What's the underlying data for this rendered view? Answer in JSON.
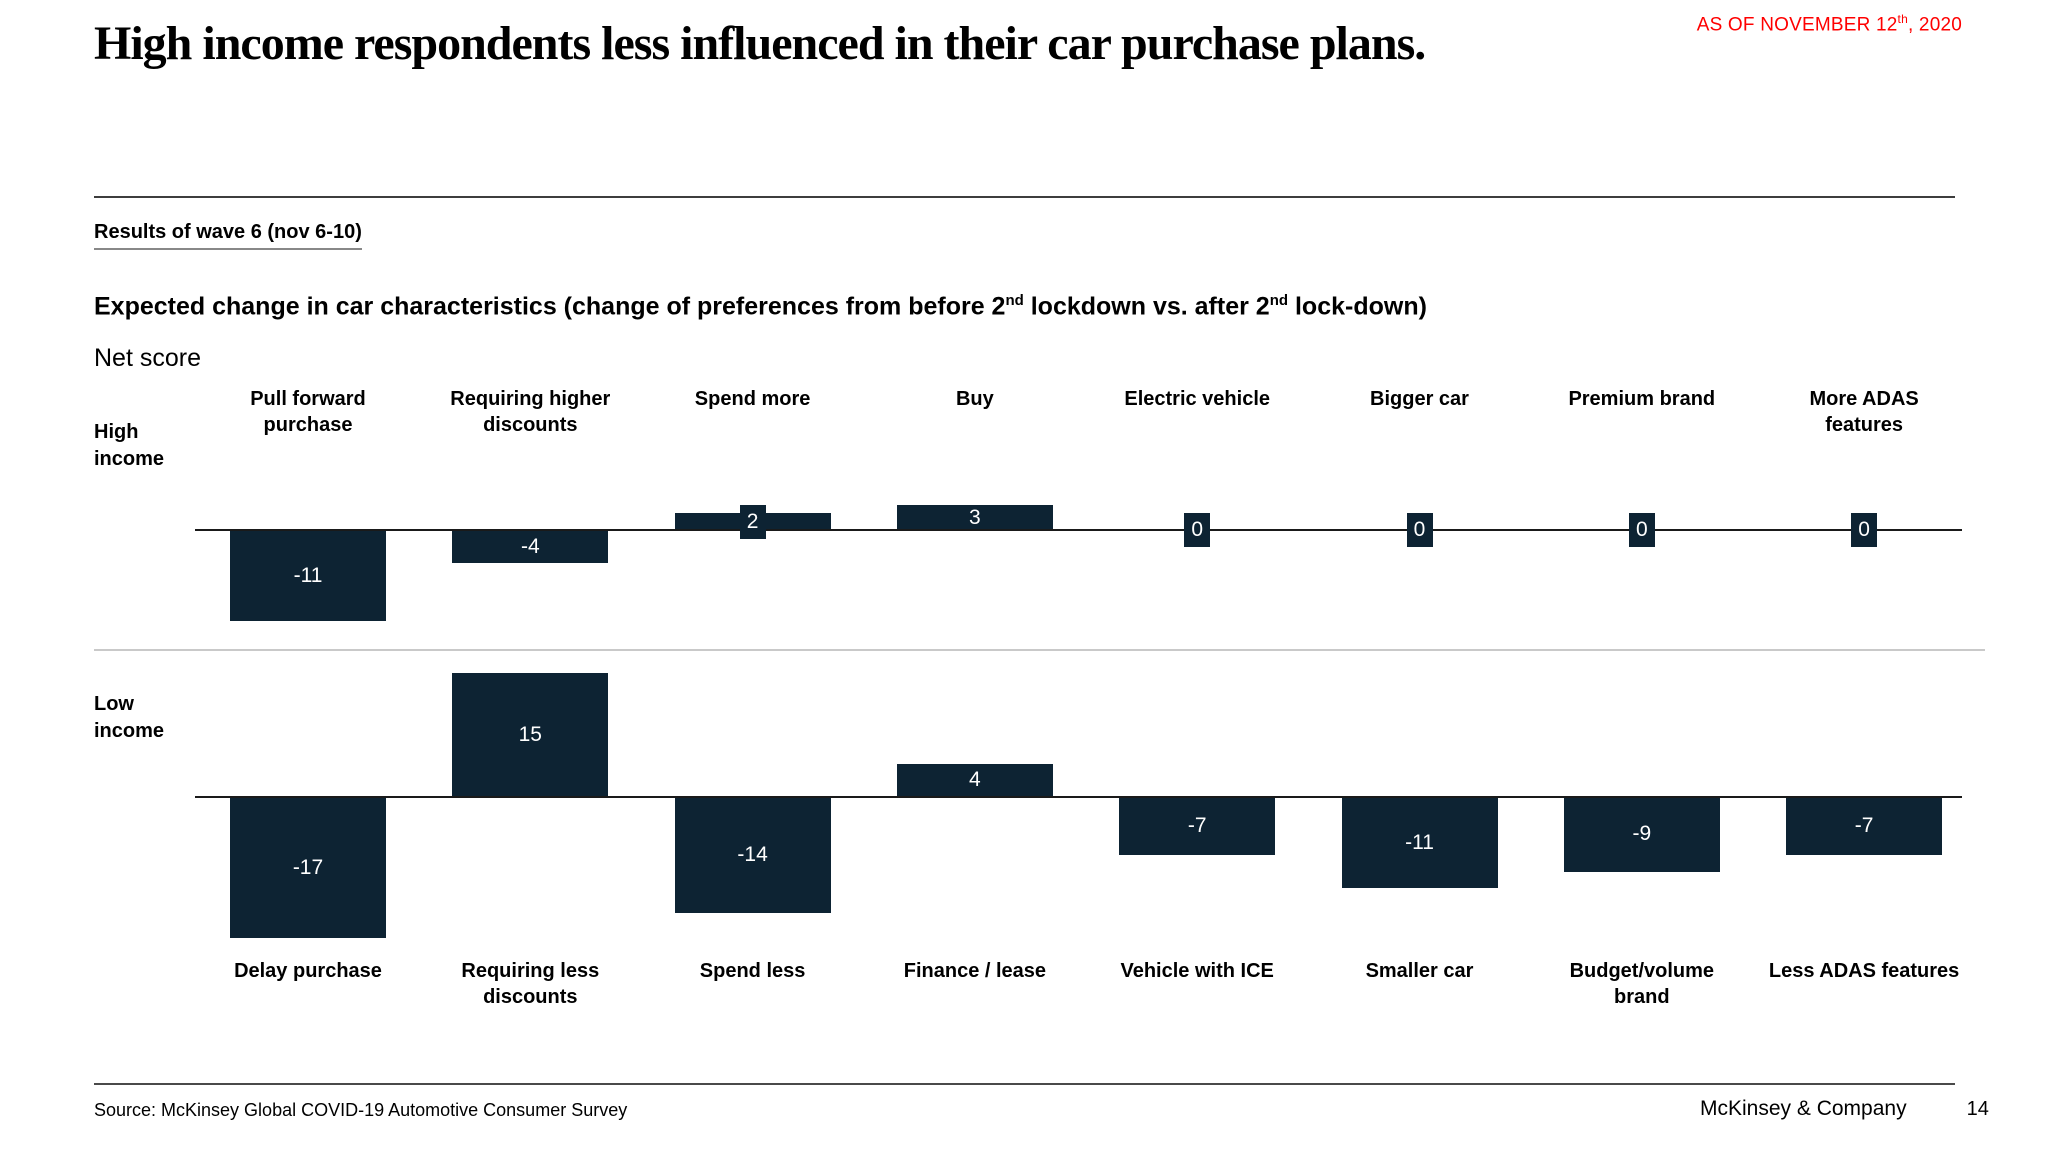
{
  "slide": {
    "as_of": {
      "prefix": "AS OF NOVEMBER 12",
      "sup": "th",
      "suffix": ", 2020"
    },
    "title": "High income respondents less influenced in their car purchase plans.",
    "wave_note": "Results of wave 6 (nov 6-10)",
    "subtitle": {
      "p1": "Expected change in car characteristics (change of preferences from before 2",
      "s1": "nd",
      "p2": " lockdown vs. after 2",
      "s2": "nd",
      "p3": " lock-down)"
    }
  },
  "chart_data": {
    "type": "bar",
    "title": "Expected change in car characteristics (change of preferences from before 2nd lockdown vs. after 2nd lock-down)",
    "ylabel": "Net score",
    "top_categories": [
      "Pull forward\npurchase",
      "Requiring higher\ndiscounts",
      "Spend more",
      "Buy",
      "Electric vehicle",
      "Bigger car",
      "Premium brand",
      "More ADAS\nfeatures"
    ],
    "bottom_categories": [
      "Delay purchase",
      "Requiring less\ndiscounts",
      "Spend less",
      "Finance / lease",
      "Vehicle with ICE",
      "Smaller car",
      "Budget/volume\nbrand",
      "Less ADAS features"
    ],
    "series": [
      {
        "name": "High income",
        "values": [
          -11,
          -4,
          2,
          3,
          0,
          0,
          0,
          0
        ]
      },
      {
        "name": "Low income",
        "values": [
          -17,
          15,
          -14,
          4,
          -7,
          -11,
          -9,
          -7
        ]
      }
    ],
    "bar_color": "#0d2333",
    "value_label_color": "#ffffff",
    "grid": "off",
    "legend_position": "row-labels-left"
  },
  "footer": {
    "source": "Source: McKinsey Global COVID-19 Automotive Consumer Survey",
    "company": "McKinsey & Company",
    "page": "14"
  }
}
